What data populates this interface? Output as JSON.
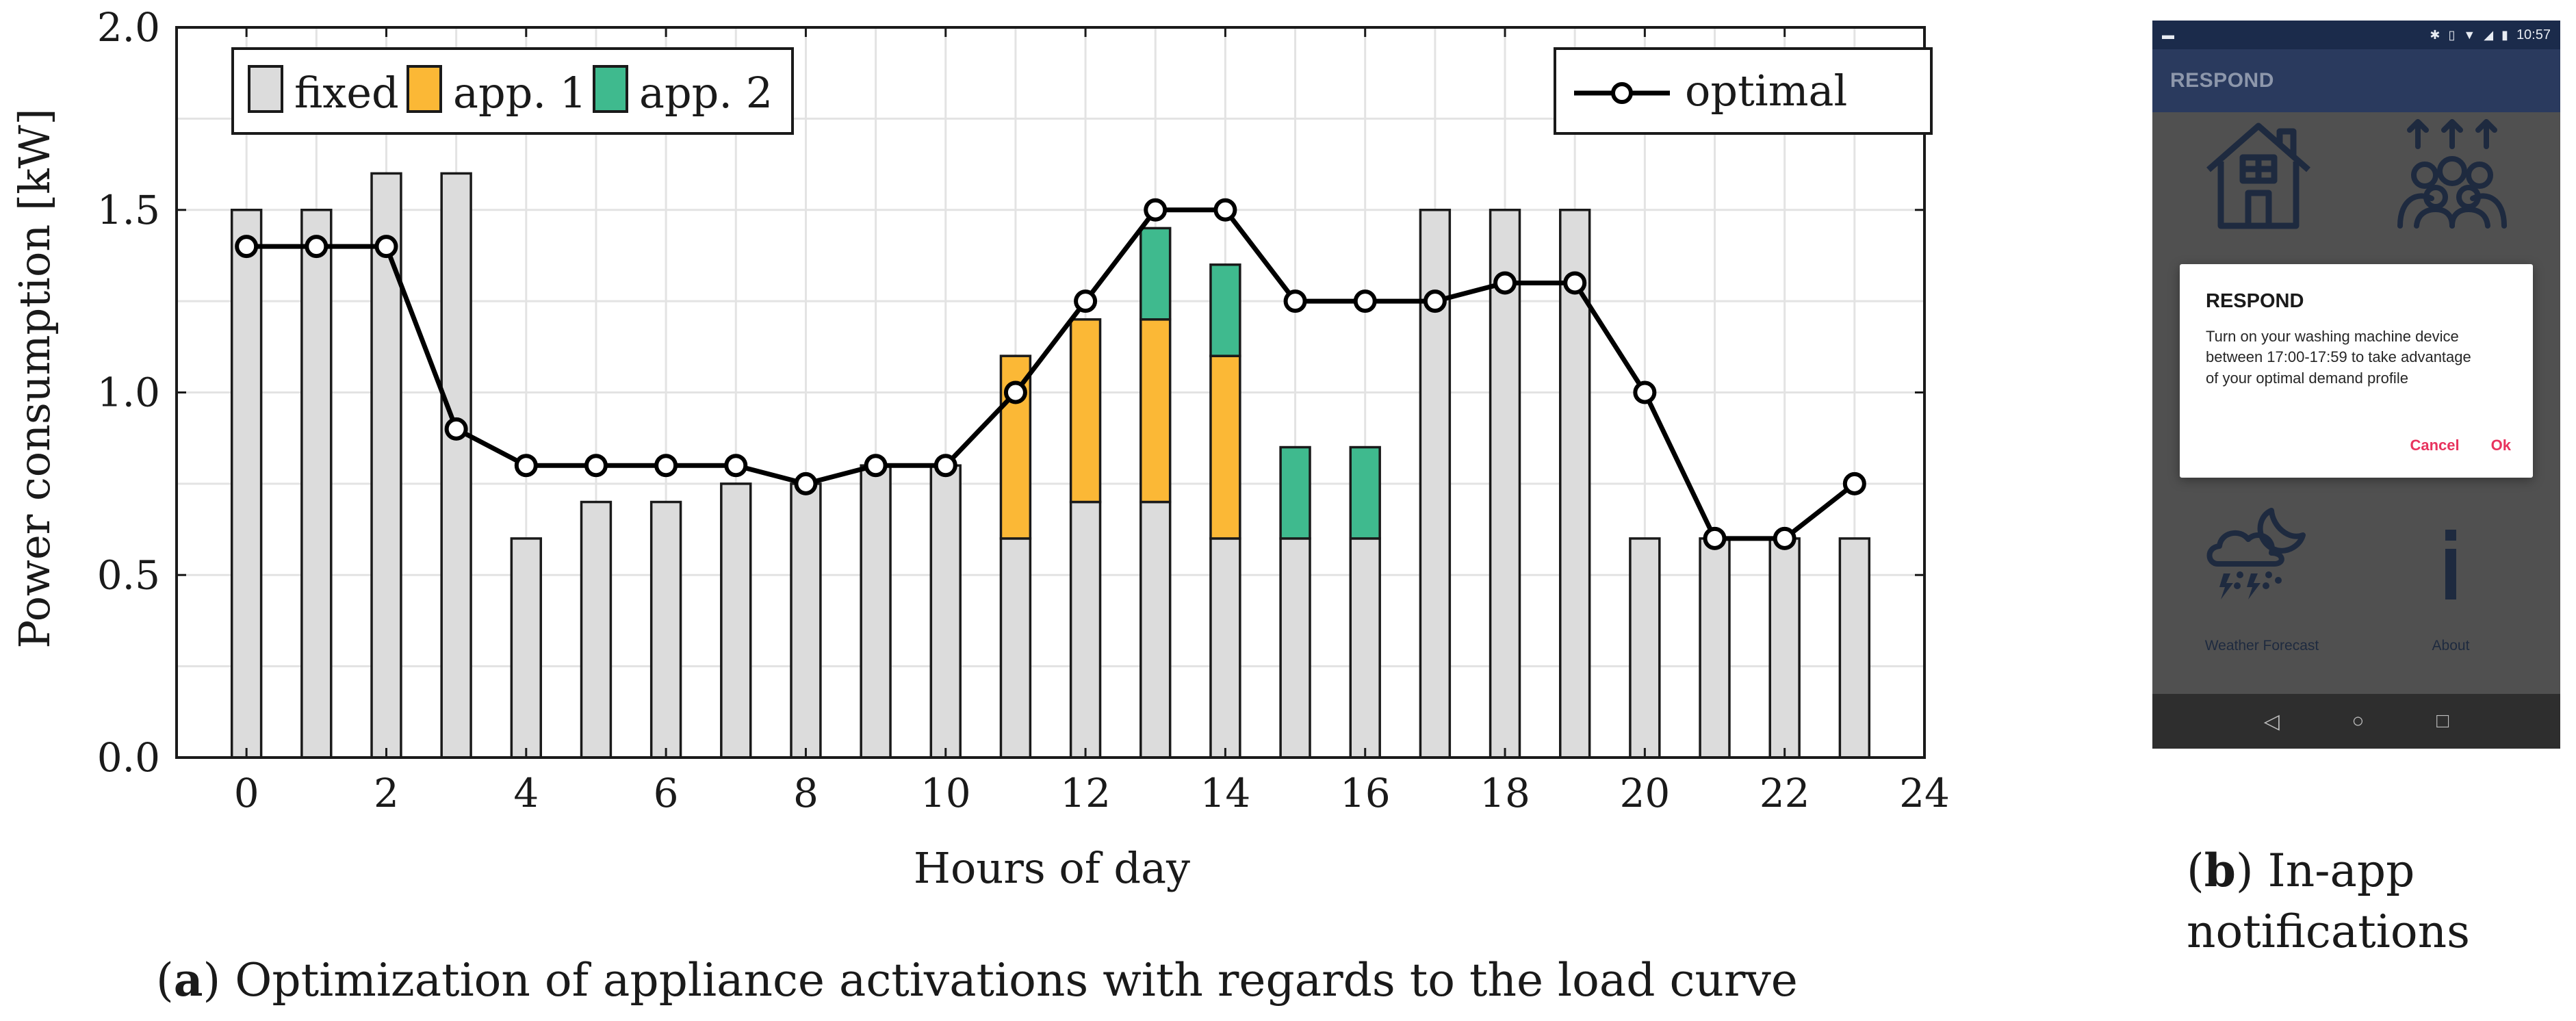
{
  "chart_data": {
    "type": "bar",
    "stacked": true,
    "x": [
      0,
      1,
      2,
      3,
      4,
      5,
      6,
      7,
      8,
      9,
      10,
      11,
      12,
      13,
      14,
      15,
      16,
      17,
      18,
      19,
      20,
      21,
      22,
      23
    ],
    "series": [
      {
        "name": "fixed",
        "color": "#dcdcdc",
        "values": [
          1.5,
          1.5,
          1.6,
          1.6,
          0.6,
          0.7,
          0.7,
          0.75,
          0.75,
          0.8,
          0.8,
          0.6,
          0.7,
          0.7,
          0.6,
          0.6,
          0.6,
          1.5,
          1.5,
          1.5,
          0.6,
          0.6,
          0.6,
          0.6
        ]
      },
      {
        "name": "app. 1",
        "color": "#fbb836",
        "values": [
          0,
          0,
          0,
          0,
          0,
          0,
          0,
          0,
          0,
          0,
          0,
          0.5,
          0.5,
          0.5,
          0.5,
          0,
          0,
          0,
          0,
          0,
          0,
          0,
          0,
          0
        ]
      },
      {
        "name": "app. 2",
        "color": "#3fba8e",
        "values": [
          0,
          0,
          0,
          0,
          0,
          0,
          0,
          0,
          0,
          0,
          0,
          0,
          0,
          0.25,
          0.25,
          0.25,
          0.25,
          0,
          0,
          0,
          0,
          0,
          0,
          0
        ]
      }
    ],
    "line": {
      "name": "optimal",
      "color": "#000000",
      "values": [
        1.4,
        1.4,
        1.4,
        0.9,
        0.8,
        0.8,
        0.8,
        0.8,
        0.75,
        0.8,
        0.8,
        1.0,
        1.25,
        1.5,
        1.5,
        1.25,
        1.25,
        1.25,
        1.3,
        1.3,
        1.0,
        0.6,
        0.6,
        0.75
      ]
    },
    "xlabel": "Hours of day",
    "ylabel": "Power consumption [kW]",
    "xlim": [
      -1,
      24
    ],
    "ylim": [
      0,
      2.0
    ],
    "xticks": [
      0,
      2,
      4,
      6,
      8,
      10,
      12,
      14,
      16,
      18,
      20,
      22,
      24
    ],
    "yticks": [
      0.0,
      0.5,
      1.0,
      1.5,
      2.0
    ],
    "ytick_labels": [
      "0.0",
      "0.5",
      "1.0",
      "1.5",
      "2.0"
    ],
    "grid": true,
    "legend_bars_position": "top-left",
    "legend_line_position": "top-right"
  },
  "captions": {
    "a_letter": "a",
    "a_text": "Optimization of appliance activations with regards to the load curve",
    "b_letter": "b",
    "b_text": "In-app notifications"
  },
  "phone": {
    "status_time": "10:57",
    "status_icons": [
      "sim-icon",
      "bluetooth-icon",
      "vibrate-icon",
      "wifi-icon",
      "signal-icon",
      "battery-icon"
    ],
    "app_title": "RESPOND",
    "tiles": [
      {
        "icon": "house-icon",
        "label": ""
      },
      {
        "icon": "community-icon",
        "label": ""
      },
      {
        "icon": "weather-icon",
        "label": "Weather Forecast"
      },
      {
        "icon": "info-icon",
        "label": "About"
      }
    ],
    "dialog": {
      "title": "RESPOND",
      "message": "Turn on your washing machine device between 17:00-17:59 to take advantage of your optimal demand profile",
      "cancel_label": "Cancel",
      "ok_label": "Ok"
    },
    "nav": [
      "back-icon",
      "home-icon",
      "recents-icon"
    ],
    "colors": {
      "statusbar": "#1b2b4b",
      "appbar": "#2a3a5e",
      "overlay": "#505050",
      "accent": "#e8335e",
      "icon": "#1e2a3f"
    }
  }
}
